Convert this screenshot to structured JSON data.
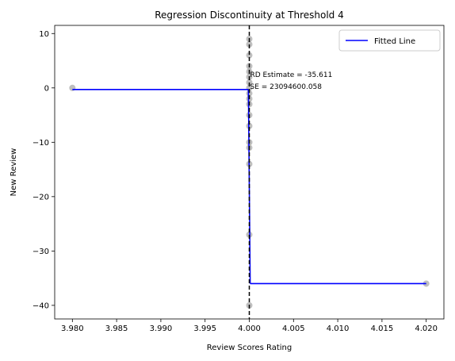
{
  "chart_data": {
    "type": "scatter",
    "title": "Regression Discontinuity at Threshold 4",
    "xlabel": "Review Scores Rating",
    "ylabel": "New Review",
    "xlim": [
      3.978,
      4.022
    ],
    "ylim": [
      -42.5,
      11.5
    ],
    "xticks": [
      3.98,
      3.985,
      3.99,
      3.995,
      4.0,
      4.005,
      4.01,
      4.015,
      4.02
    ],
    "xtick_labels": [
      "3.980",
      "3.985",
      "3.990",
      "3.995",
      "4.000",
      "4.005",
      "4.010",
      "4.015",
      "4.020"
    ],
    "yticks": [
      10,
      0,
      -10,
      -20,
      -30,
      -40
    ],
    "ytick_labels": [
      "10",
      "0",
      "−10",
      "−20",
      "−30",
      "−40"
    ],
    "threshold": 4.0,
    "grid": false,
    "legend": {
      "position": "top-right",
      "entries": [
        "Fitted Line"
      ]
    },
    "colors": {
      "line": "#0000ff",
      "points": "#808080",
      "threshold": "#000000"
    },
    "annotations": [
      "RD Estimate = -35.611",
      "SE = 23094600.058"
    ],
    "points": [
      {
        "x": 3.98,
        "y": 0
      },
      {
        "x": 4.0,
        "y": 9
      },
      {
        "x": 4.0,
        "y": 8
      },
      {
        "x": 4.0,
        "y": 6
      },
      {
        "x": 4.0,
        "y": 4
      },
      {
        "x": 4.0,
        "y": 3
      },
      {
        "x": 4.0,
        "y": 2
      },
      {
        "x": 4.0,
        "y": 1
      },
      {
        "x": 4.0,
        "y": 0
      },
      {
        "x": 4.0,
        "y": -1
      },
      {
        "x": 4.0,
        "y": -2
      },
      {
        "x": 4.0,
        "y": -3
      },
      {
        "x": 4.0,
        "y": -5
      },
      {
        "x": 4.0,
        "y": -7
      },
      {
        "x": 4.0,
        "y": -10
      },
      {
        "x": 4.0,
        "y": -11
      },
      {
        "x": 4.0,
        "y": -14
      },
      {
        "x": 4.0,
        "y": -27
      },
      {
        "x": 4.0,
        "y": -40
      },
      {
        "x": 4.02,
        "y": -36
      }
    ],
    "series": [
      {
        "name": "Fitted Line",
        "segments": [
          [
            [
              3.98,
              -0.3
            ],
            [
              3.9999,
              -0.3
            ]
          ],
          [
            [
              4.0001,
              -36.0
            ],
            [
              4.02,
              -36.0
            ]
          ]
        ]
      }
    ]
  }
}
